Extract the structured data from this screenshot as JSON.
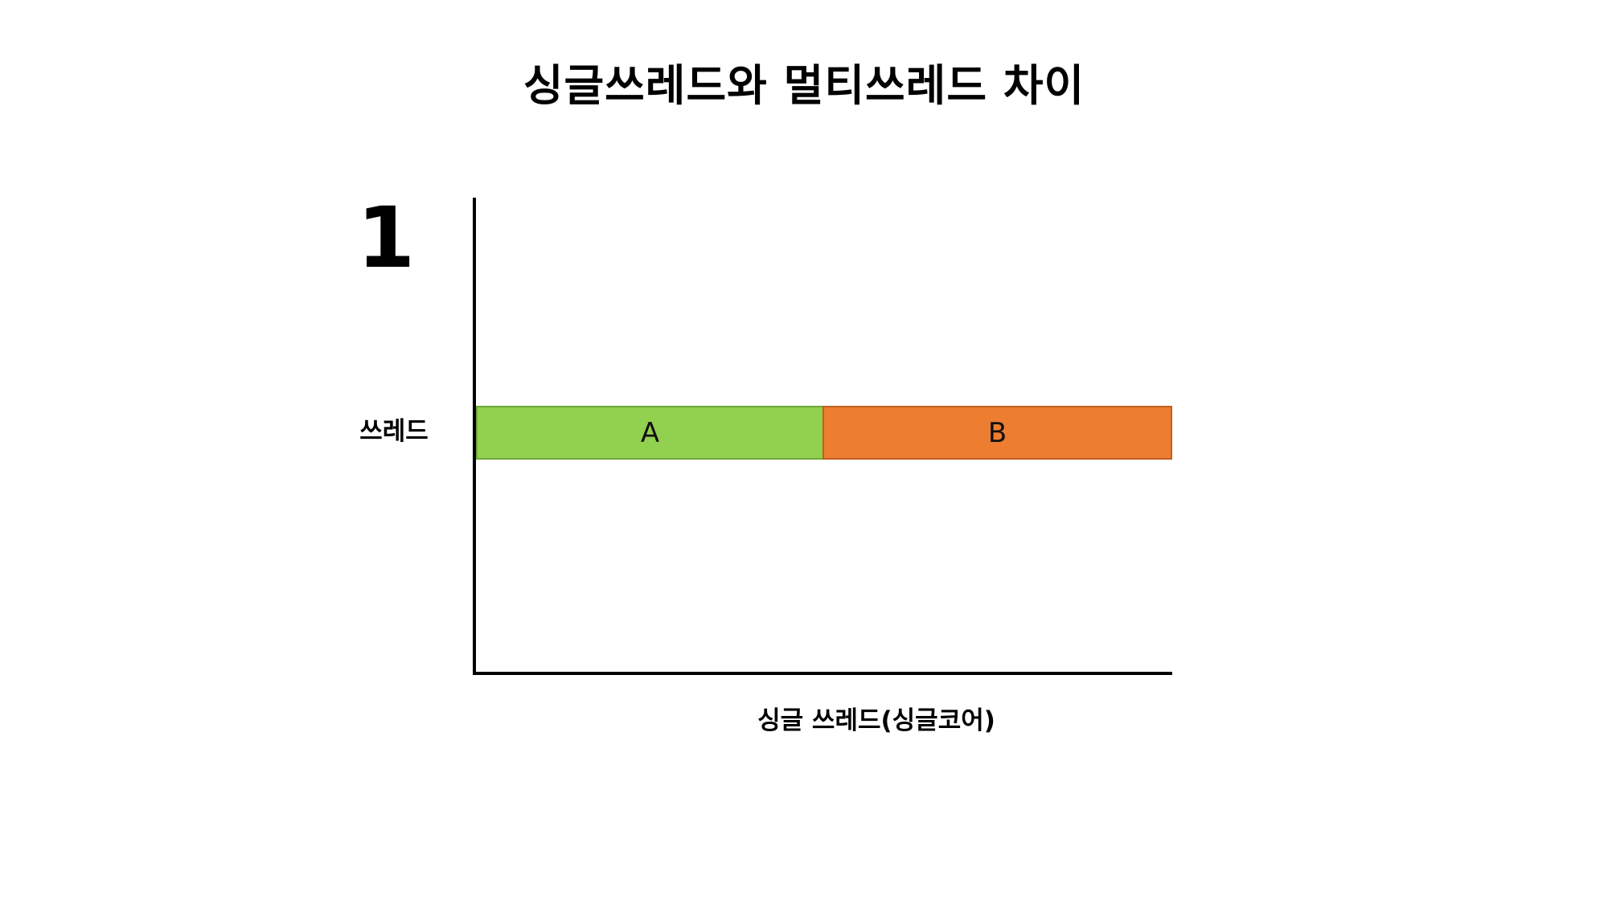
{
  "slide": {
    "title": "싱글쓰레드와 멀티쓰레드 차이"
  },
  "diagram": {
    "thread_count": "1",
    "thread_label": "쓰레드",
    "axis_caption": "싱글 쓰레드(싱글코어)",
    "tasks": [
      {
        "label": "A",
        "color": "#92d050"
      },
      {
        "label": "B",
        "color": "#ed7d31"
      }
    ]
  }
}
